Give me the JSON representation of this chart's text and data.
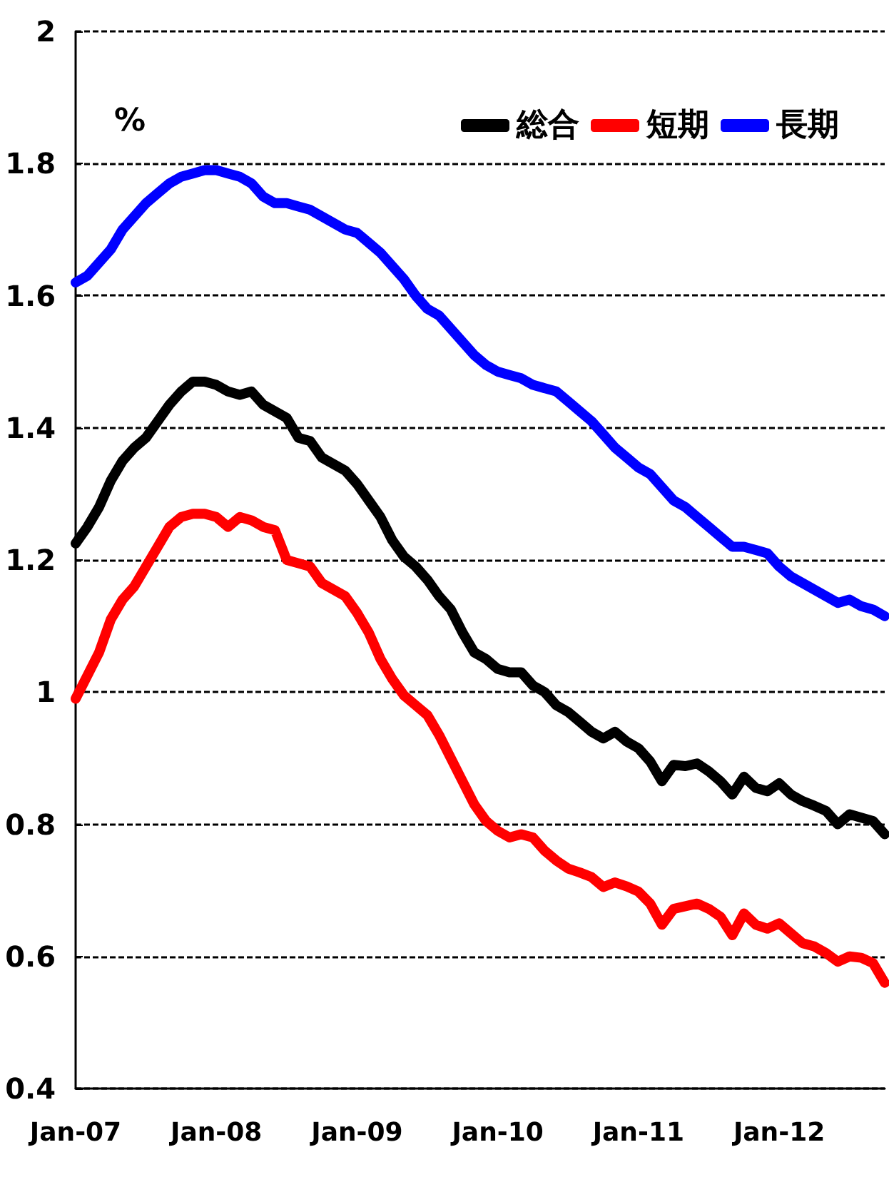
{
  "chart_data": {
    "type": "line",
    "ylabel": "%",
    "categories": [
      "Jan-07",
      null,
      null,
      null,
      null,
      null,
      null,
      null,
      null,
      null,
      null,
      null,
      "Jan-08",
      null,
      null,
      null,
      null,
      null,
      null,
      null,
      null,
      null,
      null,
      null,
      "Jan-09",
      null,
      null,
      null,
      null,
      null,
      null,
      null,
      null,
      null,
      null,
      null,
      "Jan-10",
      null,
      null,
      null,
      null,
      null,
      null,
      null,
      null,
      null,
      null,
      null,
      "Jan-11",
      null,
      null,
      null,
      null,
      null,
      null,
      null,
      null,
      null,
      null,
      null,
      "Jan-12",
      null,
      null,
      null,
      null,
      null,
      null,
      null,
      null,
      null
    ],
    "series": [
      {
        "name": "総合",
        "color": "#000000",
        "values": [
          1.225,
          1.25,
          1.28,
          1.32,
          1.35,
          1.37,
          1.385,
          1.41,
          1.435,
          1.455,
          1.47,
          1.47,
          1.465,
          1.455,
          1.45,
          1.455,
          1.435,
          1.425,
          1.415,
          1.385,
          1.38,
          1.355,
          1.345,
          1.335,
          1.315,
          1.29,
          1.265,
          1.23,
          1.205,
          1.19,
          1.17,
          1.145,
          1.125,
          1.09,
          1.06,
          1.05,
          1.035,
          1.03,
          1.03,
          1.01,
          1.0,
          0.98,
          0.97,
          0.955,
          0.94,
          0.93,
          0.94,
          0.925,
          0.915,
          0.895,
          0.865,
          0.89,
          0.888,
          0.892,
          0.88,
          0.865,
          0.845,
          0.872,
          0.855,
          0.85,
          0.862,
          0.845,
          0.835,
          0.828,
          0.82,
          0.8,
          0.815,
          0.81,
          0.805,
          0.785
        ]
      },
      {
        "name": "短期",
        "color": "#ff0000",
        "values": [
          0.99,
          1.025,
          1.06,
          1.11,
          1.14,
          1.16,
          1.19,
          1.22,
          1.25,
          1.265,
          1.27,
          1.27,
          1.265,
          1.25,
          1.265,
          1.26,
          1.25,
          1.245,
          1.2,
          1.195,
          1.19,
          1.165,
          1.155,
          1.145,
          1.12,
          1.09,
          1.05,
          1.02,
          0.995,
          0.98,
          0.965,
          0.935,
          0.9,
          0.865,
          0.83,
          0.805,
          0.79,
          0.78,
          0.785,
          0.78,
          0.76,
          0.745,
          0.733,
          0.727,
          0.72,
          0.705,
          0.712,
          0.706,
          0.698,
          0.68,
          0.648,
          0.672,
          0.676,
          0.68,
          0.672,
          0.66,
          0.632,
          0.665,
          0.648,
          0.642,
          0.65,
          0.635,
          0.62,
          0.615,
          0.605,
          0.592,
          0.6,
          0.598,
          0.59,
          0.56
        ]
      },
      {
        "name": "長期",
        "color": "#0000ff",
        "values": [
          1.62,
          1.63,
          1.65,
          1.67,
          1.7,
          1.72,
          1.74,
          1.755,
          1.77,
          1.78,
          1.785,
          1.79,
          1.79,
          1.785,
          1.78,
          1.77,
          1.75,
          1.74,
          1.74,
          1.735,
          1.73,
          1.72,
          1.71,
          1.7,
          1.695,
          1.68,
          1.665,
          1.645,
          1.625,
          1.6,
          1.58,
          1.57,
          1.55,
          1.53,
          1.51,
          1.495,
          1.485,
          1.48,
          1.475,
          1.465,
          1.46,
          1.455,
          1.44,
          1.425,
          1.41,
          1.39,
          1.37,
          1.355,
          1.34,
          1.33,
          1.31,
          1.29,
          1.28,
          1.265,
          1.25,
          1.235,
          1.22,
          1.22,
          1.215,
          1.21,
          1.19,
          1.175,
          1.165,
          1.155,
          1.145,
          1.135,
          1.14,
          1.13,
          1.125,
          1.115
        ]
      }
    ],
    "ylim": [
      0.4,
      2
    ],
    "yticks": [
      0.4,
      0.6,
      0.8,
      1,
      1.2,
      1.4,
      1.6,
      1.8,
      2
    ],
    "grid": "y",
    "legend": "top right",
    "line_style": "solid"
  }
}
